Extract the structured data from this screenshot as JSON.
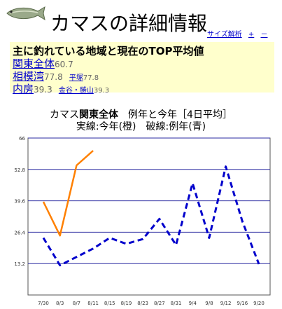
{
  "page": {
    "title": "カマスの詳細情報",
    "links": [
      {
        "label": "サイズ解析"
      },
      {
        "label": "+"
      },
      {
        "label": "－"
      }
    ]
  },
  "info": {
    "heading": "主に釣れている地域と現在のTOP平均値",
    "rows": [
      {
        "area": "関東全体",
        "value": "60.7",
        "spot": "",
        "spot_value": ""
      },
      {
        "area": "相模湾",
        "value": "77.8",
        "spot": "平塚",
        "spot_value": "77.8"
      },
      {
        "area": "内房",
        "value": "39.3",
        "spot": "金谷・勝山",
        "spot_value": "39.3"
      }
    ]
  },
  "chart_title": {
    "fish": "カマス",
    "region": "関東全体",
    "suffix": "　例年と今年［4日平均］",
    "line2": "実線:今年(橙)　破線:例年(青)"
  },
  "chart_data": {
    "type": "line",
    "categories": [
      "7/30",
      "8/3",
      "8/7",
      "8/11",
      "8/15",
      "8/19",
      "8/23",
      "8/27",
      "8/31",
      "9/4",
      "9/8",
      "9/12",
      "9/16",
      "9/20"
    ],
    "ylim": [
      0,
      66
    ],
    "yticks": [
      "13.2",
      "26.4",
      "39.6",
      "52.8",
      "66"
    ],
    "grid": true,
    "series": [
      {
        "name": "今年",
        "color": "#ff8000",
        "style": "solid",
        "x": [
          "7/30",
          "8/3",
          "8/7",
          "8/11"
        ],
        "values": [
          39.2,
          25.0,
          54.5,
          60.7
        ]
      },
      {
        "name": "例年",
        "color": "#0000cc",
        "style": "dashed",
        "x": [
          "7/30",
          "8/3",
          "8/7",
          "8/11",
          "8/15",
          "8/19",
          "8/23",
          "8/27",
          "8/31",
          "9/4",
          "9/8",
          "9/12",
          "9/16",
          "9/20"
        ],
        "values": [
          24.0,
          12.5,
          16.0,
          19.5,
          24.0,
          21.5,
          23.5,
          32.0,
          21.0,
          47.0,
          24.0,
          54.0,
          31.0,
          13.0
        ]
      }
    ]
  }
}
